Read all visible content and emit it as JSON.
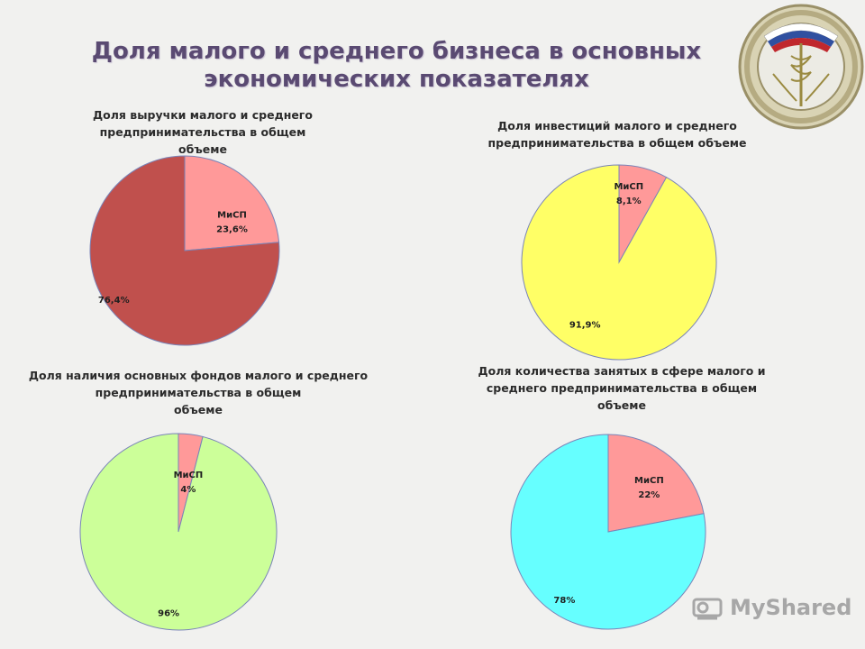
{
  "title_lines": [
    "Доля малого и среднего бизнеса в основных",
    "экономических показателях"
  ],
  "watermark": "MyShared",
  "chart_data": [
    {
      "type": "pie",
      "title_lines": [
        "Доля выручки малого и среднего",
        "предпринимательства в общем",
        "объеме"
      ],
      "slices": [
        {
          "label": "МиСП",
          "value": 23.6,
          "text": "23,6%",
          "color": "#ff9999"
        },
        {
          "label": "",
          "value": 76.4,
          "text": "76,4%",
          "color": "#c0504d"
        }
      ]
    },
    {
      "type": "pie",
      "title_lines": [
        "Доля инвестиций малого и среднего",
        "предпринимательства в общем объеме"
      ],
      "slices": [
        {
          "label": "МиСП",
          "value": 8.1,
          "text": "8,1%",
          "color": "#ff9999"
        },
        {
          "label": "",
          "value": 91.9,
          "text": "91,9%",
          "color": "#ffff66"
        }
      ]
    },
    {
      "type": "pie",
      "title_lines": [
        "Доля наличия основных фондов малого и среднего",
        "предпринимательства в общем",
        "объеме"
      ],
      "slices": [
        {
          "label": "МиСП",
          "value": 4,
          "text": "4%",
          "color": "#ff9999"
        },
        {
          "label": "",
          "value": 96,
          "text": "96%",
          "color": "#ccff99"
        }
      ]
    },
    {
      "type": "pie",
      "title_lines": [
        "Доля количества занятых в сфере малого и",
        "среднего  предпринимательства в общем",
        "объеме"
      ],
      "slices": [
        {
          "label": "МиСП",
          "value": 22,
          "text": "22%",
          "color": "#ff9999"
        },
        {
          "label": "",
          "value": 78,
          "text": "78%",
          "color": "#66ffff"
        }
      ]
    }
  ]
}
